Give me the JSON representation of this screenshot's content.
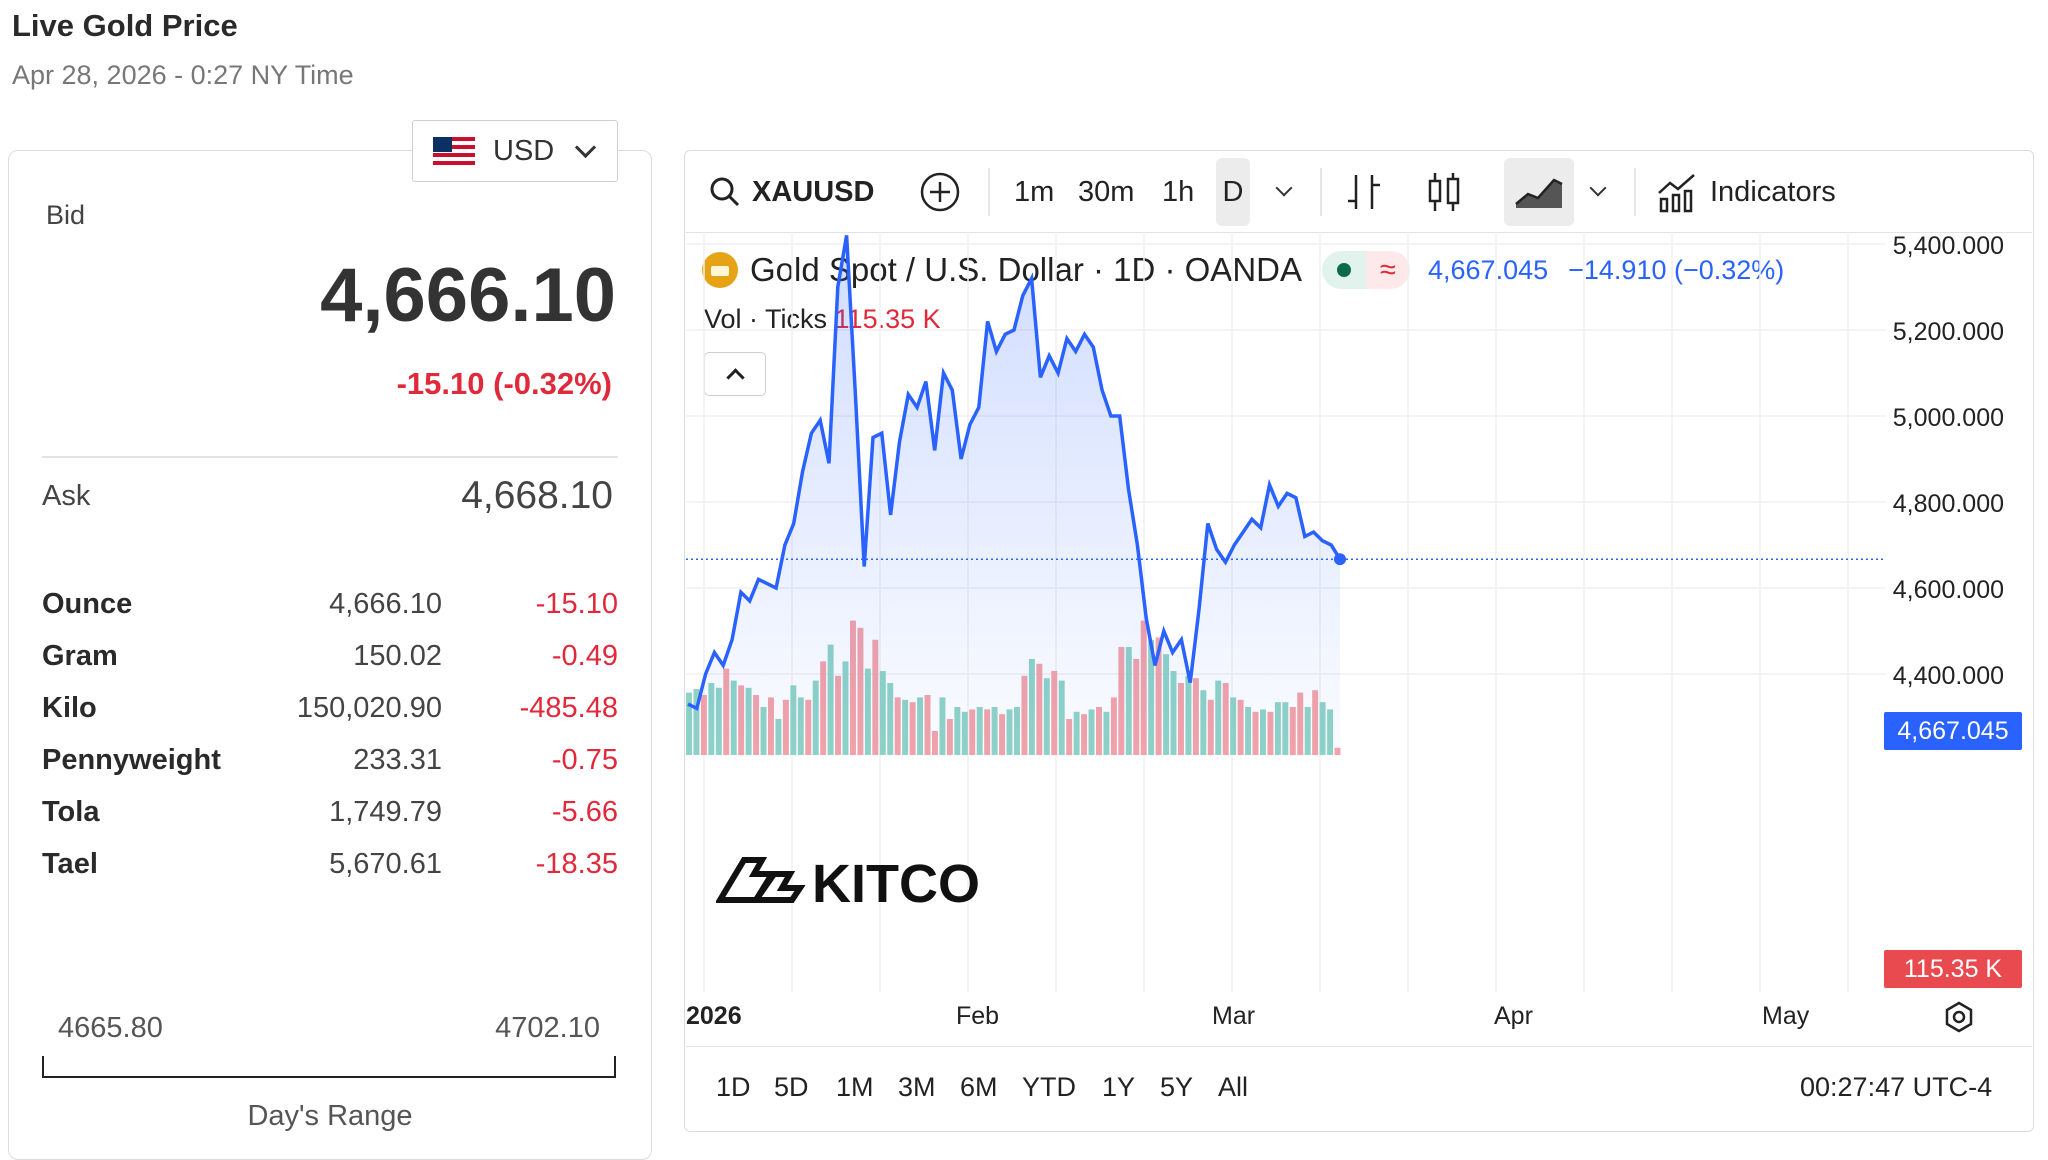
{
  "header": {
    "title": "Live Gold Price",
    "subtitle": "Apr 28, 2026 - 0:27 NY Time"
  },
  "currency": {
    "selected": "USD"
  },
  "quote": {
    "bid_label": "Bid",
    "bid": "4,666.10",
    "change": "-15.10 (-0.32%)",
    "ask_label": "Ask",
    "ask": "4,668.10"
  },
  "units": [
    {
      "name": "Ounce",
      "price": "4,666.10",
      "change": "-15.10"
    },
    {
      "name": "Gram",
      "price": "150.02",
      "change": "-0.49"
    },
    {
      "name": "Kilo",
      "price": "150,020.90",
      "change": "-485.48"
    },
    {
      "name": "Pennyweight",
      "price": "233.31",
      "change": "-0.75"
    },
    {
      "name": "Tola",
      "price": "1,749.79",
      "change": "-5.66"
    },
    {
      "name": "Tael",
      "price": "5,670.61",
      "change": "-18.35"
    }
  ],
  "day_range": {
    "low": "4665.80",
    "high": "4702.10",
    "label": "Day's Range"
  },
  "chart": {
    "toolbar": {
      "symbol": "XAUUSD",
      "intervals": [
        "1m",
        "30m",
        "1h",
        "D"
      ],
      "active_interval": "D",
      "indicators_label": "Indicators"
    },
    "legend": {
      "title": "Gold Spot / U.S. Dollar · 1D · OANDA",
      "price": "4,667.045",
      "change": "−14.910 (−0.32%)",
      "pill_symbol": "≈"
    },
    "volume": {
      "label": "Vol · Ticks",
      "value": "115.35 K"
    },
    "y_axis_labels": [
      "5,400.000",
      "5,200.000",
      "5,000.000",
      "4,800.000",
      "4,600.000",
      "4,400.000"
    ],
    "last_price_tag": "4,667.045",
    "volume_tag": "115.35 K",
    "x_axis_labels": [
      "2026",
      "Feb",
      "Mar",
      "Apr",
      "May"
    ],
    "range_buttons": [
      "1D",
      "5D",
      "1M",
      "3M",
      "6M",
      "YTD",
      "1Y",
      "5Y",
      "All"
    ],
    "clock": "00:27:47 UTC-4",
    "watermark": "KITCO",
    "colors": {
      "line": "#2962ff",
      "vol_up": "#8fd3c6",
      "vol_down": "#f4a3a8",
      "down": "#e0293a"
    }
  },
  "chart_data": {
    "type": "line",
    "ylim": [
      4350,
      5430
    ],
    "y_ticks": [
      4400,
      4600,
      4800,
      5000,
      5200,
      5400
    ],
    "x_ticks": [
      "2026",
      "Feb",
      "Mar",
      "Apr",
      "May"
    ],
    "series": [
      {
        "values": [
          4330,
          4320,
          4400,
          4450,
          4420,
          4480,
          4590,
          4570,
          4620,
          4610,
          4600,
          4700,
          4750,
          4870,
          4960,
          4990,
          4890,
          5300,
          5420,
          5050,
          4650,
          4950,
          4960,
          4770,
          4940,
          5050,
          5020,
          5080,
          4920,
          5100,
          5060,
          4900,
          4980,
          5020,
          5220,
          5150,
          5190,
          5200,
          5280,
          5320,
          5090,
          5140,
          5100,
          5180,
          5150,
          5190,
          5160,
          5060,
          5000,
          5000,
          4830,
          4700,
          4530,
          4420,
          4500,
          4450,
          4480,
          4380,
          4550,
          4750,
          4690,
          4660,
          4700,
          4730,
          4760,
          4740,
          4840,
          4790,
          4820,
          4810,
          4720,
          4730,
          4710,
          4700,
          4667
        ]
      }
    ],
    "volume": [
      {
        "v": 52,
        "up": true
      },
      {
        "v": 55,
        "up": true
      },
      {
        "v": 50,
        "up": false
      },
      {
        "v": 60,
        "up": true
      },
      {
        "v": 56,
        "up": true
      },
      {
        "v": 72,
        "up": false
      },
      {
        "v": 62,
        "up": true
      },
      {
        "v": 58,
        "up": false
      },
      {
        "v": 56,
        "up": true
      },
      {
        "v": 50,
        "up": false
      },
      {
        "v": 40,
        "up": true
      },
      {
        "v": 48,
        "up": false
      },
      {
        "v": 30,
        "up": true
      },
      {
        "v": 46,
        "up": false
      },
      {
        "v": 58,
        "up": true
      },
      {
        "v": 48,
        "up": true
      },
      {
        "v": 46,
        "up": false
      },
      {
        "v": 62,
        "up": true
      },
      {
        "v": 78,
        "up": false
      },
      {
        "v": 92,
        "up": true
      },
      {
        "v": 66,
        "up": false
      },
      {
        "v": 78,
        "up": true
      },
      {
        "v": 112,
        "up": false
      },
      {
        "v": 106,
        "up": false
      },
      {
        "v": 72,
        "up": true
      },
      {
        "v": 96,
        "up": false
      },
      {
        "v": 70,
        "up": true
      },
      {
        "v": 60,
        "up": true
      },
      {
        "v": 48,
        "up": false
      },
      {
        "v": 46,
        "up": true
      },
      {
        "v": 44,
        "up": false
      },
      {
        "v": 48,
        "up": true
      },
      {
        "v": 50,
        "up": false
      },
      {
        "v": 20,
        "up": false
      },
      {
        "v": 48,
        "up": true
      },
      {
        "v": 30,
        "up": false
      },
      {
        "v": 40,
        "up": true
      },
      {
        "v": 36,
        "up": true
      },
      {
        "v": 38,
        "up": false
      },
      {
        "v": 40,
        "up": true
      },
      {
        "v": 38,
        "up": false
      },
      {
        "v": 40,
        "up": true
      },
      {
        "v": 34,
        "up": false
      },
      {
        "v": 38,
        "up": true
      },
      {
        "v": 40,
        "up": true
      },
      {
        "v": 66,
        "up": false
      },
      {
        "v": 80,
        "up": true
      },
      {
        "v": 76,
        "up": false
      },
      {
        "v": 64,
        "up": true
      },
      {
        "v": 70,
        "up": false
      },
      {
        "v": 62,
        "up": true
      },
      {
        "v": 30,
        "up": false
      },
      {
        "v": 36,
        "up": true
      },
      {
        "v": 34,
        "up": false
      },
      {
        "v": 38,
        "up": true
      },
      {
        "v": 40,
        "up": false
      },
      {
        "v": 36,
        "up": true
      },
      {
        "v": 48,
        "up": false
      },
      {
        "v": 90,
        "up": false
      },
      {
        "v": 90,
        "up": true
      },
      {
        "v": 80,
        "up": false
      },
      {
        "v": 112,
        "up": false
      },
      {
        "v": 96,
        "up": true
      },
      {
        "v": 98,
        "up": false
      },
      {
        "v": 84,
        "up": true
      },
      {
        "v": 70,
        "up": true
      },
      {
        "v": 60,
        "up": false
      },
      {
        "v": 66,
        "up": true
      },
      {
        "v": 64,
        "up": false
      },
      {
        "v": 54,
        "up": true
      },
      {
        "v": 46,
        "up": false
      },
      {
        "v": 62,
        "up": true
      },
      {
        "v": 60,
        "up": false
      },
      {
        "v": 48,
        "up": true
      },
      {
        "v": 46,
        "up": false
      },
      {
        "v": 40,
        "up": true
      },
      {
        "v": 36,
        "up": false
      },
      {
        "v": 38,
        "up": true
      },
      {
        "v": 36,
        "up": false
      },
      {
        "v": 44,
        "up": true
      },
      {
        "v": 44,
        "up": true
      },
      {
        "v": 40,
        "up": false
      },
      {
        "v": 52,
        "up": false
      },
      {
        "v": 40,
        "up": true
      },
      {
        "v": 54,
        "up": false
      },
      {
        "v": 44,
        "up": true
      },
      {
        "v": 38,
        "up": true
      },
      {
        "v": 6,
        "up": false
      }
    ]
  }
}
